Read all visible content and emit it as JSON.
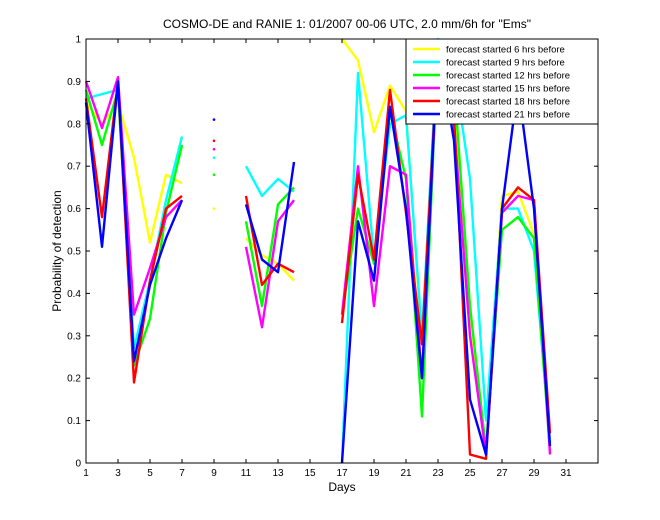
{
  "chart_data": {
    "type": "line",
    "title": "COSMO-DE and RANIE 1: 01/2007 00-06 UTC, 2.0 mm/6h for \"Ems\"",
    "xlabel": "Days",
    "ylabel": "Probability of detection",
    "xlim": [
      1,
      33
    ],
    "ylim": [
      0,
      1
    ],
    "xticks": [
      1,
      3,
      5,
      7,
      9,
      11,
      13,
      15,
      17,
      19,
      21,
      23,
      25,
      27,
      29,
      31
    ],
    "yticks": [
      0,
      0.1,
      0.2,
      0.3,
      0.4,
      0.5,
      0.6,
      0.7,
      0.8,
      0.9,
      1
    ],
    "ytick_labels": [
      "0",
      "0.1",
      "0.2",
      "0.3",
      "0.4",
      "0.5",
      "0.6",
      "0.7",
      "0.8",
      "0.9",
      "1"
    ],
    "x": [
      1,
      2,
      3,
      4,
      5,
      6,
      7,
      8,
      9,
      10,
      11,
      12,
      13,
      14,
      15,
      16,
      17,
      18,
      19,
      20,
      21,
      22,
      23,
      24,
      25,
      26,
      27,
      28,
      29,
      30
    ],
    "grid": false,
    "legend_position": "top-right",
    "series": [
      {
        "name": "forecast started 6 hrs before",
        "color": "#ffff00",
        "values": [
          0.85,
          0.8,
          0.85,
          0.72,
          0.52,
          0.68,
          0.66,
          null,
          0.6,
          null,
          0.53,
          0.49,
          0.47,
          0.43,
          null,
          null,
          1.0,
          0.95,
          0.78,
          0.89,
          0.83,
          0.28,
          0.97,
          0.88,
          0.35,
          0.03,
          0.63,
          0.64,
          0.54,
          0.05
        ]
      },
      {
        "name": "forecast started 9 hrs before",
        "color": "#00ffff",
        "values": [
          0.86,
          0.87,
          0.88,
          0.27,
          0.43,
          0.62,
          0.77,
          null,
          0.72,
          null,
          0.7,
          0.63,
          0.67,
          0.64,
          null,
          null,
          0.0,
          0.92,
          0.48,
          0.8,
          0.82,
          0.3,
          1.0,
          0.93,
          0.67,
          0.1,
          0.6,
          0.6,
          0.5,
          0.05
        ]
      },
      {
        "name": "forecast started 12 hrs before",
        "color": "#00ff00",
        "values": [
          0.88,
          0.75,
          0.88,
          0.23,
          0.34,
          0.59,
          0.75,
          null,
          0.68,
          null,
          0.57,
          0.37,
          0.61,
          0.65,
          null,
          null,
          0.35,
          0.6,
          0.47,
          0.83,
          0.67,
          0.11,
          0.99,
          0.9,
          0.37,
          0.03,
          0.55,
          0.58,
          0.53,
          0.03
        ]
      },
      {
        "name": "forecast started 15 hrs before",
        "color": "#ff00ff",
        "values": [
          0.9,
          0.79,
          0.91,
          0.35,
          0.46,
          0.58,
          0.62,
          null,
          0.74,
          null,
          0.51,
          0.32,
          0.57,
          0.62,
          null,
          null,
          0.35,
          0.7,
          0.37,
          0.7,
          0.68,
          0.2,
          0.98,
          0.8,
          0.3,
          0.02,
          0.59,
          0.63,
          0.62,
          0.02
        ]
      },
      {
        "name": "forecast started 18 hrs before",
        "color": "#ff0000",
        "values": [
          0.86,
          0.58,
          0.9,
          0.19,
          0.43,
          0.6,
          0.63,
          null,
          0.76,
          null,
          0.63,
          0.42,
          0.47,
          0.45,
          null,
          null,
          0.33,
          0.68,
          0.48,
          0.88,
          0.59,
          0.28,
          0.98,
          0.82,
          0.02,
          0.01,
          0.6,
          0.65,
          0.62,
          0.07
        ]
      },
      {
        "name": "forecast started 21 hrs before",
        "color": "#0000ff",
        "values": [
          0.85,
          0.51,
          0.9,
          0.24,
          0.42,
          0.53,
          0.62,
          null,
          0.81,
          null,
          0.61,
          0.48,
          0.45,
          0.71,
          null,
          null,
          0.0,
          0.57,
          0.43,
          0.84,
          0.6,
          0.2,
          0.99,
          0.76,
          0.15,
          0.02,
          0.6,
          0.89,
          0.6,
          0.04
        ]
      }
    ]
  }
}
